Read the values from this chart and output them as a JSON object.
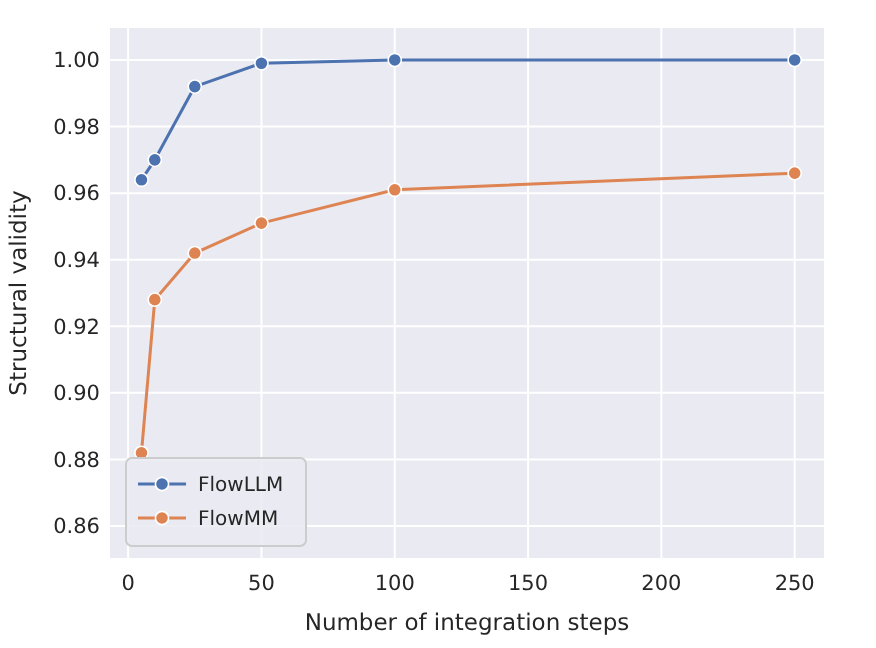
{
  "chart_data": {
    "type": "line",
    "xlabel": "Number of integration steps",
    "ylabel": "Structural validity",
    "xlim": [
      -6.8,
      261
    ],
    "ylim": [
      0.8504,
      1.0096
    ],
    "xticks": [
      0,
      50,
      100,
      150,
      200,
      250
    ],
    "yticks": [
      {
        "value": 0.86,
        "label": "0.86"
      },
      {
        "value": 0.88,
        "label": "0.88"
      },
      {
        "value": 0.9,
        "label": "0.90"
      },
      {
        "value": 0.92,
        "label": "0.92"
      },
      {
        "value": 0.94,
        "label": "0.94"
      },
      {
        "value": 0.96,
        "label": "0.96"
      },
      {
        "value": 0.98,
        "label": "0.98"
      },
      {
        "value": 1,
        "label": "1.00"
      }
    ],
    "x": [
      5,
      10,
      25,
      50,
      100,
      250
    ],
    "series": [
      {
        "name": "FlowLLM",
        "color": "#4c72b0",
        "values": [
          0.964,
          0.97,
          0.992,
          0.999,
          1.0,
          1.0
        ]
      },
      {
        "name": "FlowMM",
        "color": "#dd8452",
        "values": [
          0.882,
          0.928,
          0.942,
          0.951,
          0.961,
          0.966
        ]
      }
    ],
    "grid": true,
    "legend": "bottom left",
    "marker": "circle",
    "line_style": "solid"
  }
}
